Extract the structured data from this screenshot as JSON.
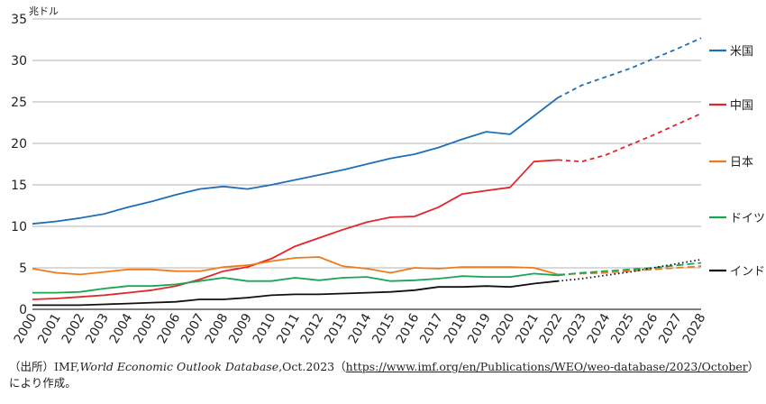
{
  "chart_data": {
    "type": "line",
    "ylabel": "兆ドル",
    "ylim": [
      0,
      35
    ],
    "yticks": [
      "0",
      "5",
      "10",
      "15",
      "20",
      "25",
      "30",
      "35"
    ],
    "x": [
      "2000",
      "2001",
      "2002",
      "2003",
      "2004",
      "2005",
      "2006",
      "2007",
      "2008",
      "2009",
      "2010",
      "2011",
      "2012",
      "2013",
      "2014",
      "2015",
      "2016",
      "2017",
      "2018",
      "2019",
      "2020",
      "2021",
      "2022",
      "2023",
      "2024",
      "2025",
      "2026",
      "2027",
      "2028"
    ],
    "grid": true,
    "legend": "right",
    "projection_start": "2022",
    "series": [
      {
        "name": "米国",
        "color": "#1f6fb5",
        "values": [
          10.3,
          10.6,
          11.0,
          11.5,
          12.3,
          13.0,
          13.8,
          14.5,
          14.8,
          14.5,
          15.0,
          15.6,
          16.2,
          16.8,
          17.5,
          18.2,
          18.7,
          19.5,
          20.5,
          21.4,
          21.1,
          23.3,
          25.5,
          27.0,
          28.0,
          29.0,
          30.2,
          31.4,
          32.7
        ]
      },
      {
        "name": "中国",
        "color": "#e3262a",
        "values": [
          1.2,
          1.3,
          1.5,
          1.7,
          2.0,
          2.3,
          2.8,
          3.6,
          4.6,
          5.1,
          6.1,
          7.6,
          8.6,
          9.6,
          10.5,
          11.1,
          11.2,
          12.3,
          13.9,
          14.3,
          14.7,
          17.8,
          18.0,
          17.8,
          18.6,
          19.8,
          21.0,
          22.3,
          23.6
        ]
      },
      {
        "name": "日本",
        "color": "#f07a1a",
        "values": [
          4.9,
          4.4,
          4.2,
          4.5,
          4.8,
          4.8,
          4.6,
          4.6,
          5.1,
          5.3,
          5.8,
          6.2,
          6.3,
          5.2,
          4.9,
          4.4,
          5.0,
          4.9,
          5.1,
          5.1,
          5.1,
          5.0,
          4.2,
          4.3,
          4.4,
          4.6,
          4.8,
          5.0,
          5.2
        ]
      },
      {
        "name": "ドイツ",
        "color": "#1aa553",
        "values": [
          2.0,
          2.0,
          2.1,
          2.5,
          2.8,
          2.8,
          3.0,
          3.4,
          3.8,
          3.4,
          3.4,
          3.8,
          3.5,
          3.8,
          3.9,
          3.4,
          3.5,
          3.7,
          4.0,
          3.9,
          3.9,
          4.3,
          4.1,
          4.4,
          4.6,
          4.8,
          5.0,
          5.3,
          5.6
        ]
      },
      {
        "name": "インド",
        "color": "#111111",
        "values": [
          0.5,
          0.5,
          0.5,
          0.6,
          0.7,
          0.8,
          0.9,
          1.2,
          1.2,
          1.4,
          1.7,
          1.8,
          1.8,
          1.9,
          2.0,
          2.1,
          2.3,
          2.7,
          2.7,
          2.8,
          2.7,
          3.1,
          3.4,
          3.7,
          4.1,
          4.5,
          5.0,
          5.5,
          6.0
        ]
      }
    ]
  },
  "source": {
    "prefix": "（出所）IMF,",
    "database": "World Economic Outlook Database",
    "edition": ",Oct.2023（",
    "url": "https://www.imf.org/en/Publications/WEO/weo-database/2023/October",
    "suffix": "）",
    "line2": "により作成。"
  }
}
